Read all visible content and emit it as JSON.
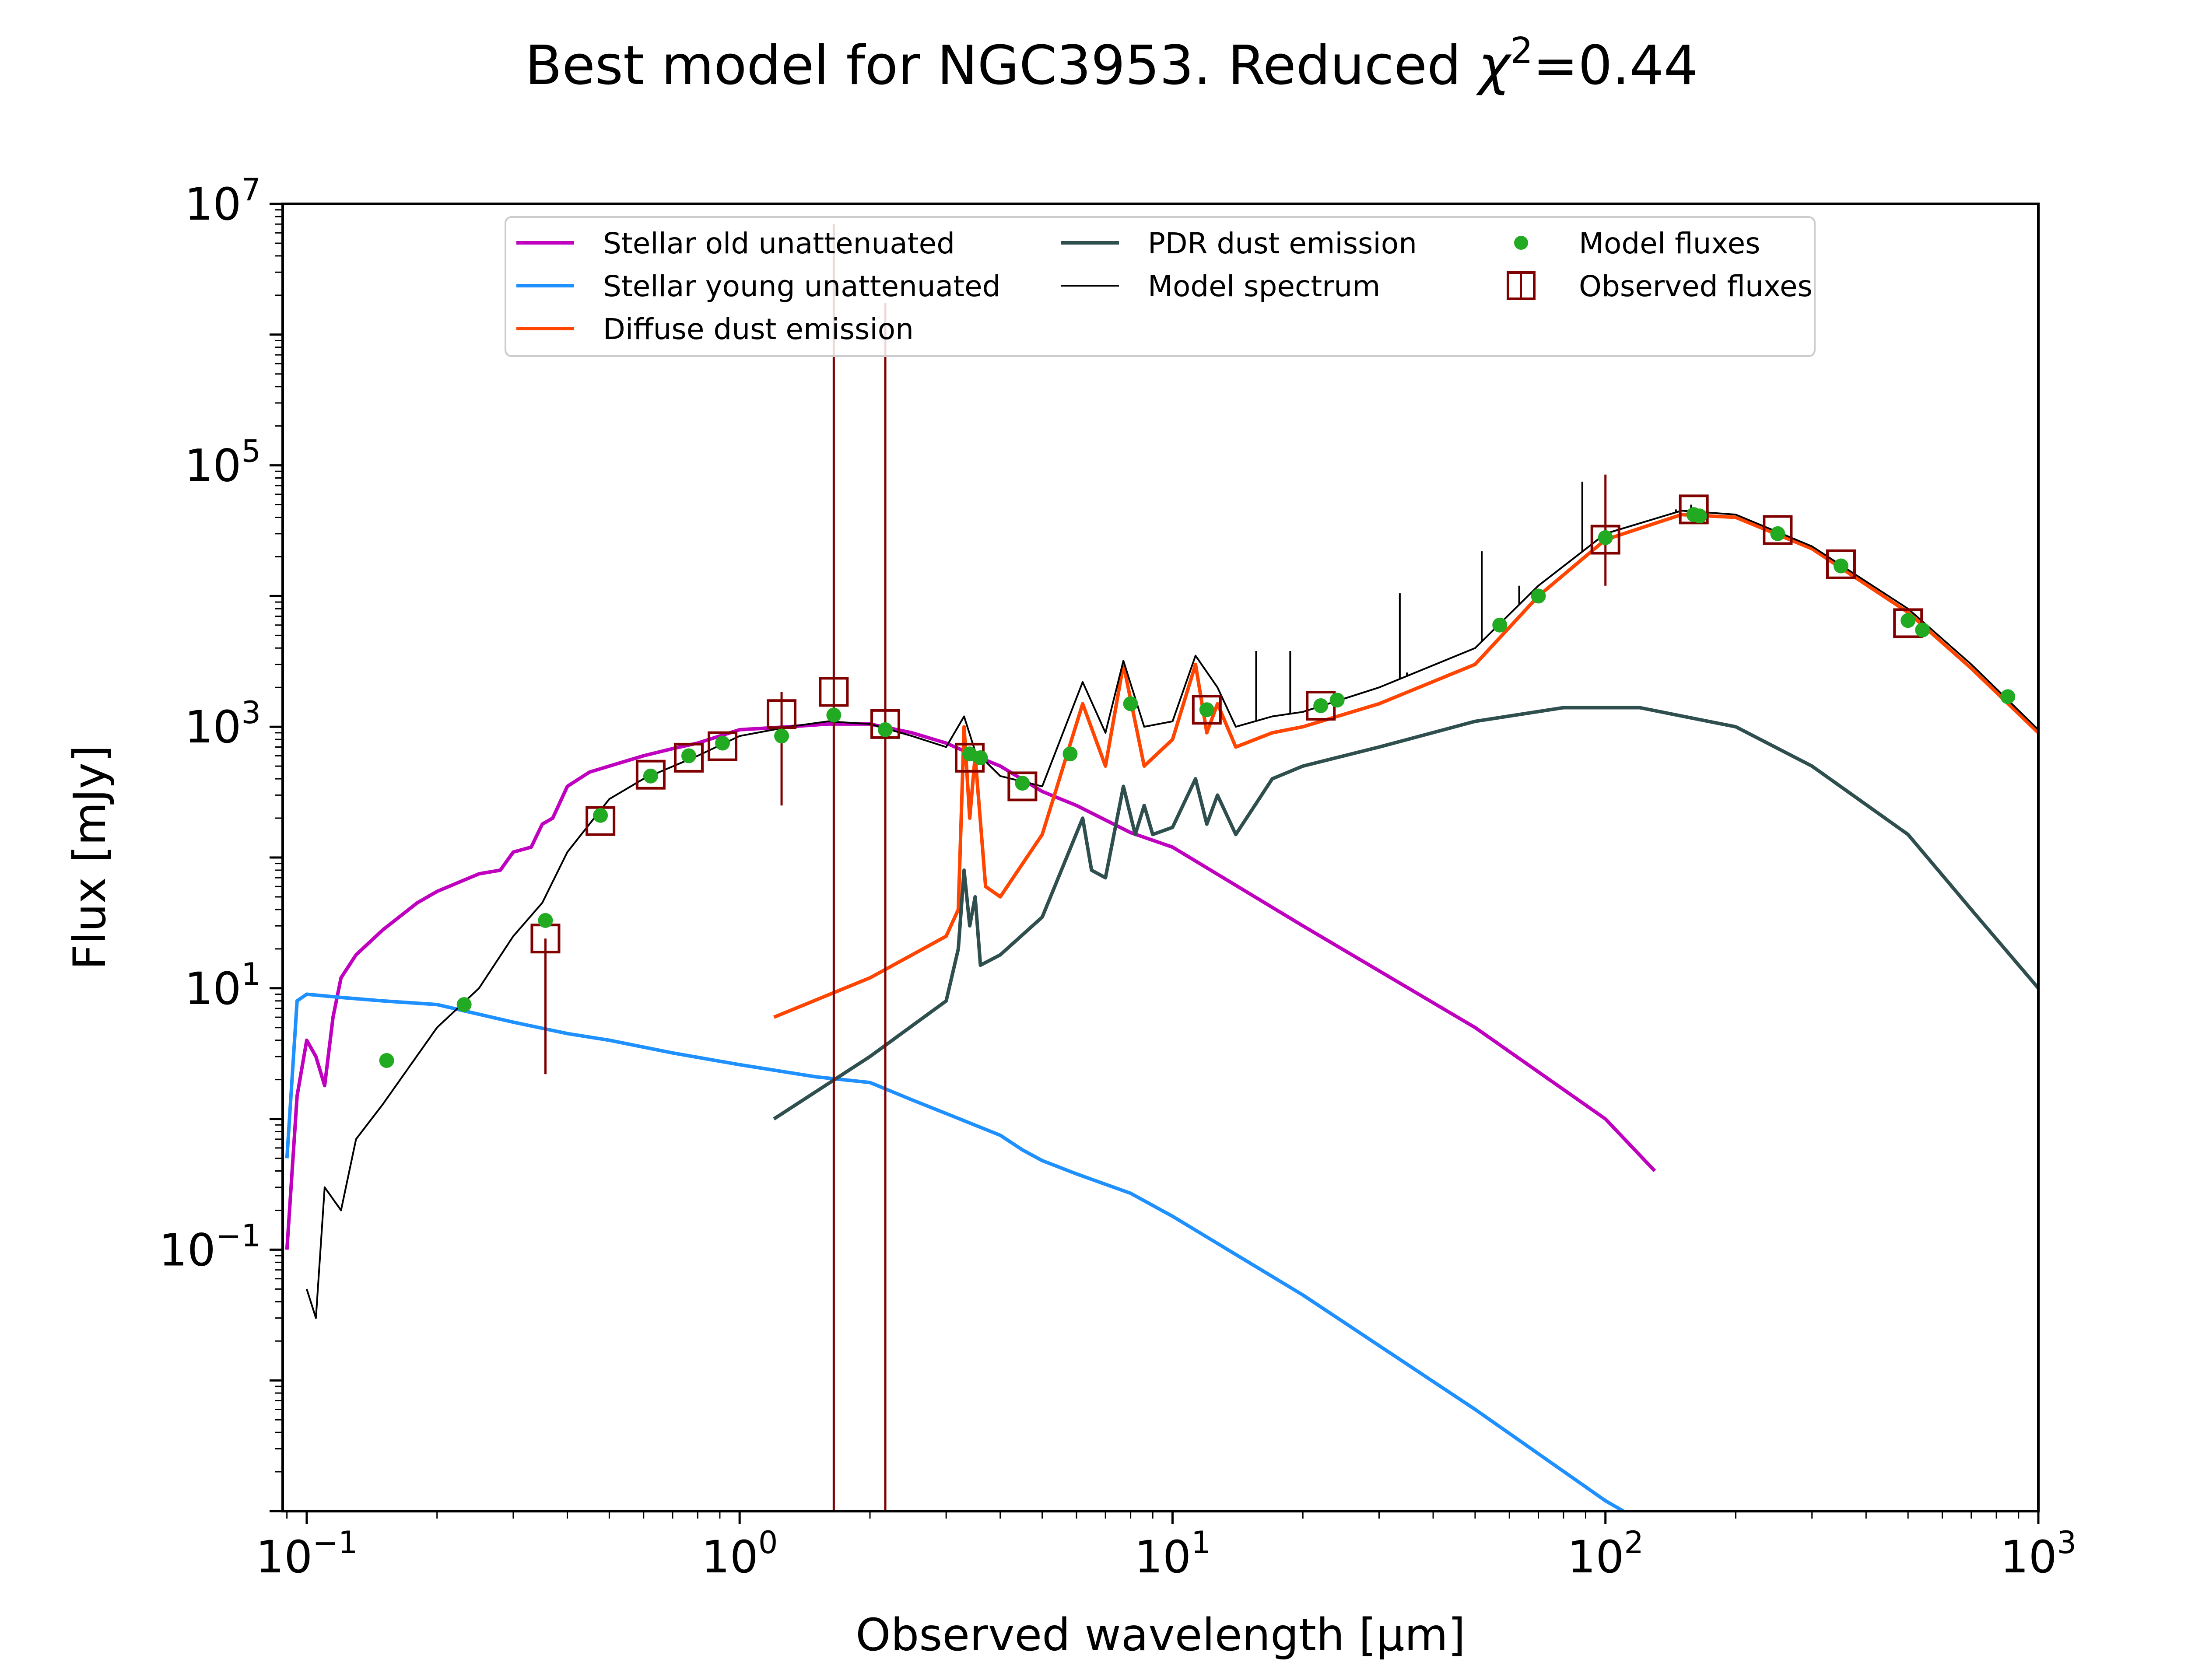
{
  "figure": {
    "title": "Best model for NGC3953. Reduced χ²=0.44",
    "title_main": "Best model for NGC3953. Reduced ",
    "title_chi": "χ",
    "title_exp": "2",
    "title_val": "=0.44"
  },
  "chart_data": {
    "type": "line",
    "title": "Best model for NGC3953. Reduced χ²=0.44",
    "xlabel": "Observed wavelength [μm]",
    "ylabel": "Flux [mJy]",
    "xscale": "log",
    "yscale": "log",
    "xlim": [
      0.088,
      1000
    ],
    "ylim": [
      0.001,
      10000000
    ],
    "x_ticks": [
      {
        "base": "10",
        "exp": "−1",
        "value": 0.1
      },
      {
        "base": "10",
        "exp": "0",
        "value": 1
      },
      {
        "base": "10",
        "exp": "1",
        "value": 10
      },
      {
        "base": "10",
        "exp": "2",
        "value": 100
      },
      {
        "base": "10",
        "exp": "3",
        "value": 1000
      }
    ],
    "y_ticks": [
      {
        "base": "10",
        "exp": "−1",
        "value": 0.1
      },
      {
        "base": "10",
        "exp": "1",
        "value": 10
      },
      {
        "base": "10",
        "exp": "3",
        "value": 1000
      },
      {
        "base": "10",
        "exp": "5",
        "value": 100000
      },
      {
        "base": "10",
        "exp": "7",
        "value": 10000000
      }
    ],
    "grid": false,
    "legend_position": "top-center",
    "series": [
      {
        "name": "Stellar old unattenuated",
        "kind": "line",
        "color": "#bf00bf",
        "points": [
          [
            0.09,
            0.1
          ],
          [
            0.095,
            1.5
          ],
          [
            0.1,
            4
          ],
          [
            0.105,
            3
          ],
          [
            0.11,
            1.8
          ],
          [
            0.115,
            6
          ],
          [
            0.12,
            12
          ],
          [
            0.13,
            18
          ],
          [
            0.15,
            28
          ],
          [
            0.18,
            45
          ],
          [
            0.2,
            55
          ],
          [
            0.25,
            75
          ],
          [
            0.28,
            80
          ],
          [
            0.3,
            110
          ],
          [
            0.33,
            120
          ],
          [
            0.35,
            180
          ],
          [
            0.37,
            200
          ],
          [
            0.4,
            350
          ],
          [
            0.45,
            450
          ],
          [
            0.5,
            500
          ],
          [
            0.6,
            600
          ],
          [
            0.7,
            680
          ],
          [
            0.8,
            750
          ],
          [
            1.0,
            950
          ],
          [
            1.3,
            1000
          ],
          [
            1.6,
            1050
          ],
          [
            2.0,
            1050
          ],
          [
            2.5,
            900
          ],
          [
            3.0,
            750
          ],
          [
            3.5,
            600
          ],
          [
            4.0,
            500
          ],
          [
            5.0,
            320
          ],
          [
            6.0,
            250
          ],
          [
            8.0,
            155
          ],
          [
            10.0,
            120
          ],
          [
            20.0,
            30
          ],
          [
            50.0,
            5
          ],
          [
            100.0,
            1
          ],
          [
            130.0,
            0.4
          ]
        ]
      },
      {
        "name": "Stellar young unattenuated",
        "kind": "line",
        "color": "#1e90ff",
        "points": [
          [
            0.09,
            0.5
          ],
          [
            0.095,
            8
          ],
          [
            0.1,
            9
          ],
          [
            0.12,
            8.5
          ],
          [
            0.15,
            8
          ],
          [
            0.2,
            7.5
          ],
          [
            0.3,
            5.5
          ],
          [
            0.4,
            4.5
          ],
          [
            0.5,
            4
          ],
          [
            0.7,
            3.2
          ],
          [
            1.0,
            2.6
          ],
          [
            1.5,
            2.1
          ],
          [
            2.0,
            1.9
          ],
          [
            2.5,
            1.4
          ],
          [
            3.0,
            1.1
          ],
          [
            4.0,
            0.75
          ],
          [
            4.5,
            0.58
          ],
          [
            5.0,
            0.48
          ],
          [
            6.0,
            0.38
          ],
          [
            8.0,
            0.27
          ],
          [
            10.0,
            0.18
          ],
          [
            20.0,
            0.045
          ],
          [
            50.0,
            0.006
          ],
          [
            100.0,
            0.0012
          ],
          [
            110.0,
            0.001
          ]
        ]
      },
      {
        "name": "Diffuse dust emission",
        "kind": "line",
        "color": "#ff4500",
        "points": [
          [
            1.2,
            6
          ],
          [
            2.0,
            12
          ],
          [
            3.0,
            25
          ],
          [
            3.2,
            40
          ],
          [
            3.3,
            1000
          ],
          [
            3.4,
            200
          ],
          [
            3.5,
            600
          ],
          [
            3.7,
            60
          ],
          [
            4.0,
            50
          ],
          [
            5.0,
            150
          ],
          [
            6.2,
            1500
          ],
          [
            7.0,
            500
          ],
          [
            7.7,
            3000
          ],
          [
            8.6,
            500
          ],
          [
            10.0,
            800
          ],
          [
            11.3,
            3000
          ],
          [
            12.0,
            900
          ],
          [
            12.7,
            1500
          ],
          [
            14.0,
            700
          ],
          [
            17.0,
            900
          ],
          [
            20.0,
            1000
          ],
          [
            30.0,
            1500
          ],
          [
            50.0,
            3000
          ],
          [
            70.0,
            10000
          ],
          [
            100.0,
            27000
          ],
          [
            150.0,
            42000
          ],
          [
            200.0,
            40000
          ],
          [
            300.0,
            23000
          ],
          [
            500.0,
            7500
          ],
          [
            700.0,
            2800
          ],
          [
            1000.0,
            900
          ]
        ]
      },
      {
        "name": "PDR dust emission",
        "kind": "line",
        "color": "#2f4f4f",
        "points": [
          [
            1.2,
            1
          ],
          [
            2.0,
            3
          ],
          [
            3.0,
            8
          ],
          [
            3.2,
            20
          ],
          [
            3.3,
            80
          ],
          [
            3.4,
            30
          ],
          [
            3.5,
            50
          ],
          [
            3.6,
            15
          ],
          [
            4.0,
            18
          ],
          [
            5.0,
            35
          ],
          [
            6.2,
            200
          ],
          [
            6.5,
            80
          ],
          [
            7.0,
            70
          ],
          [
            7.7,
            350
          ],
          [
            8.2,
            150
          ],
          [
            8.6,
            250
          ],
          [
            9.0,
            150
          ],
          [
            10.0,
            170
          ],
          [
            11.3,
            400
          ],
          [
            12.0,
            180
          ],
          [
            12.7,
            300
          ],
          [
            14.0,
            150
          ],
          [
            17.0,
            400
          ],
          [
            20.0,
            500
          ],
          [
            30.0,
            700
          ],
          [
            50.0,
            1100
          ],
          [
            80.0,
            1400
          ],
          [
            120.0,
            1400
          ],
          [
            200.0,
            1000
          ],
          [
            300.0,
            500
          ],
          [
            500.0,
            150
          ],
          [
            700.0,
            40
          ],
          [
            1000.0,
            10
          ]
        ]
      },
      {
        "name": "Model spectrum",
        "kind": "line",
        "color": "#000000",
        "points": [
          [
            0.1,
            0.05
          ],
          [
            0.105,
            0.03
          ],
          [
            0.11,
            0.3
          ],
          [
            0.12,
            0.2
          ],
          [
            0.13,
            0.7
          ],
          [
            0.15,
            1.3
          ],
          [
            0.2,
            5
          ],
          [
            0.25,
            10
          ],
          [
            0.3,
            25
          ],
          [
            0.35,
            45
          ],
          [
            0.4,
            110
          ],
          [
            0.5,
            280
          ],
          [
            0.6,
            400
          ],
          [
            0.8,
            600
          ],
          [
            1.0,
            850
          ],
          [
            1.3,
            1000
          ],
          [
            1.6,
            1100
          ],
          [
            2.0,
            1050
          ],
          [
            2.5,
            850
          ],
          [
            3.0,
            700
          ],
          [
            3.3,
            1200
          ],
          [
            3.5,
            650
          ],
          [
            4.0,
            420
          ],
          [
            5.0,
            350
          ],
          [
            6.2,
            2200
          ],
          [
            7.0,
            900
          ],
          [
            7.7,
            3200
          ],
          [
            8.6,
            1000
          ],
          [
            10.0,
            1100
          ],
          [
            11.3,
            3500
          ],
          [
            12.7,
            2000
          ],
          [
            14.0,
            1000
          ],
          [
            17.0,
            1200
          ],
          [
            20.0,
            1300
          ],
          [
            30.0,
            2000
          ],
          [
            50.0,
            4000
          ],
          [
            70.0,
            12000
          ],
          [
            100.0,
            30000
          ],
          [
            150.0,
            45000
          ],
          [
            200.0,
            42000
          ],
          [
            300.0,
            24000
          ],
          [
            500.0,
            8000
          ],
          [
            700.0,
            3000
          ],
          [
            1000.0,
            950
          ]
        ]
      },
      {
        "name": "Model fluxes",
        "kind": "points",
        "color": "#22aa22",
        "points": [
          [
            0.153,
            2.8
          ],
          [
            0.231,
            7.5
          ],
          [
            0.356,
            33
          ],
          [
            0.477,
            210
          ],
          [
            0.623,
            420
          ],
          [
            0.763,
            600
          ],
          [
            0.913,
            750
          ],
          [
            1.25,
            850
          ],
          [
            1.65,
            1230
          ],
          [
            2.17,
            950
          ],
          [
            3.4,
            620
          ],
          [
            3.6,
            580
          ],
          [
            4.5,
            370
          ],
          [
            5.8,
            620
          ],
          [
            8.0,
            1500
          ],
          [
            12.0,
            1350
          ],
          [
            22.0,
            1450
          ],
          [
            24.0,
            1600
          ],
          [
            57.0,
            6000
          ],
          [
            70.0,
            10000
          ],
          [
            100.0,
            28000
          ],
          [
            160.0,
            42000
          ],
          [
            165.0,
            41000
          ],
          [
            250.0,
            30000
          ],
          [
            350.0,
            17000
          ],
          [
            500.0,
            6500
          ],
          [
            540.0,
            5500
          ],
          [
            850.0,
            1700
          ]
        ]
      },
      {
        "name": "Observed fluxes",
        "kind": "points",
        "color": "#800000",
        "points": [
          [
            0.356,
            24
          ],
          [
            0.477,
            190
          ],
          [
            0.623,
            430
          ],
          [
            0.763,
            580
          ],
          [
            0.913,
            710
          ],
          [
            1.25,
            1250
          ],
          [
            1.65,
            1850
          ],
          [
            2.17,
            1050
          ],
          [
            3.4,
            580
          ],
          [
            4.5,
            350
          ],
          [
            12.0,
            1350
          ],
          [
            22.0,
            1450
          ],
          [
            100.0,
            27000
          ],
          [
            160.0,
            46000
          ],
          [
            250.0,
            32000
          ],
          [
            350.0,
            17500
          ],
          [
            500.0,
            6200
          ]
        ]
      }
    ],
    "observed_error_bars": [
      {
        "x": 0.356,
        "low": 2.2,
        "high": 24
      },
      {
        "x": 1.25,
        "low": 250,
        "high": 1850
      },
      {
        "x": 1.65,
        "low": 0.001,
        "high": 7000000
      },
      {
        "x": 2.17,
        "low": 0.001,
        "high": 1750000
      },
      {
        "x": 100.0,
        "low": 12000,
        "high": 85000
      }
    ],
    "emission_line_spikes": [
      {
        "x": 15.6,
        "top": 3800
      },
      {
        "x": 18.7,
        "top": 3800
      },
      {
        "x": 33.5,
        "top": 10500
      },
      {
        "x": 34.8,
        "top": 2600
      },
      {
        "x": 51.8,
        "top": 22000
      },
      {
        "x": 63.2,
        "top": 12000
      },
      {
        "x": 88.4,
        "top": 75000
      },
      {
        "x": 145.5,
        "top": 46000
      },
      {
        "x": 157.7,
        "top": 50000
      }
    ]
  }
}
